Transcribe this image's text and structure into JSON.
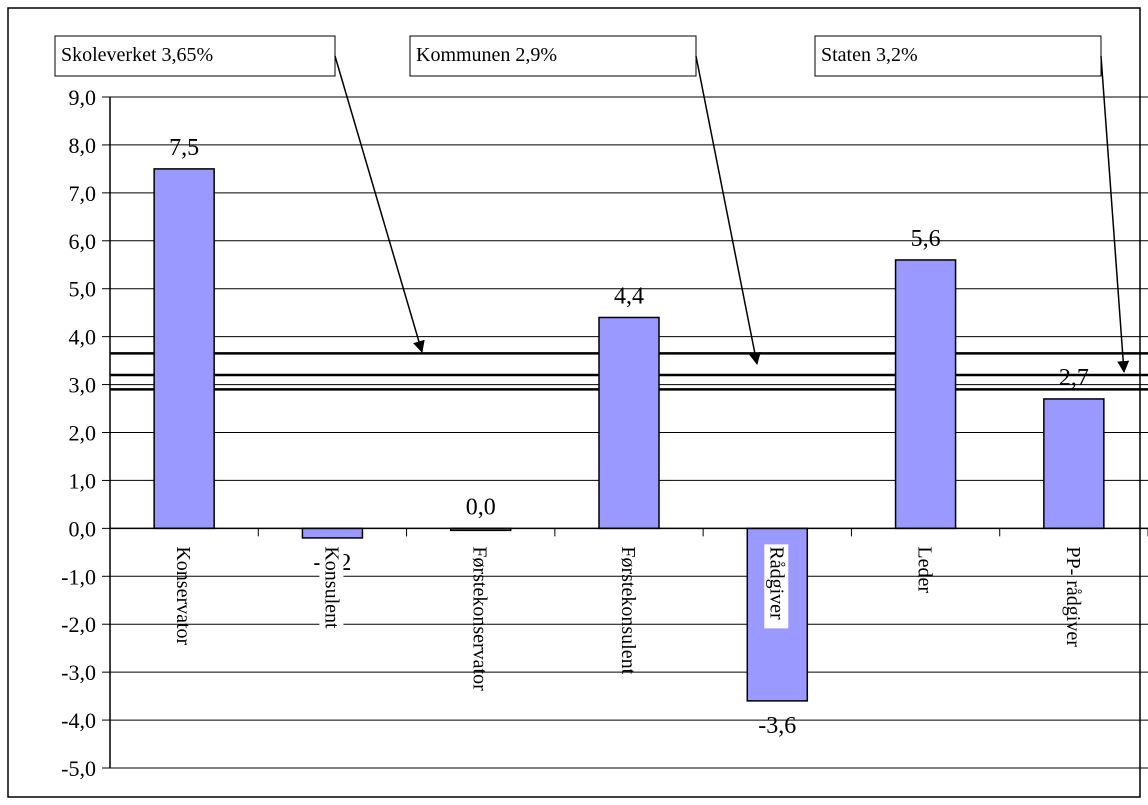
{
  "chart_data": {
    "type": "bar",
    "categories": [
      "Konservator",
      "Konsulent",
      "Førstekonservator",
      "Førstekonsulent",
      "Rådgiver",
      "Leder",
      "PP- rådgiver"
    ],
    "values": [
      7.5,
      -0.2,
      0.0,
      4.4,
      -3.6,
      5.6,
      2.7
    ],
    "data_labels": [
      "7,5",
      "-0,2",
      "0,0",
      "4,4",
      "-3,6",
      "5,6",
      "2,7"
    ],
    "ylim": [
      -5,
      9
    ],
    "yticks": [
      9,
      8,
      7,
      6,
      5,
      4,
      3,
      2,
      1,
      0,
      -1,
      -2,
      -3,
      -4,
      -5
    ],
    "ytick_labels": [
      "9,0",
      "8,0",
      "7,0",
      "6,0",
      "5,0",
      "4,0",
      "3,0",
      "2,0",
      "1,0",
      "0,0",
      "-1,0",
      "-2,0",
      "-3,0",
      "-4,0",
      "-5,0"
    ],
    "grid": true,
    "bar_color": "#9999ff",
    "reference_lines": [
      {
        "label": "Skoleverket 3,65%",
        "value": 3.65
      },
      {
        "label": "Kommunen 2,9%",
        "value": 2.9
      },
      {
        "label": "Staten 3,2%",
        "value": 3.2
      }
    ],
    "title": "",
    "xlabel": "",
    "ylabel": ""
  }
}
